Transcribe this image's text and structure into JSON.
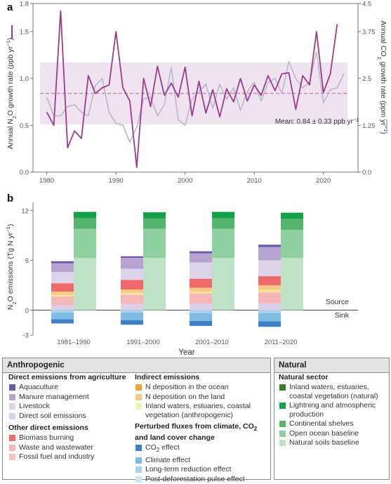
{
  "panels": {
    "a": {
      "label": "a"
    },
    "b": {
      "label": "b"
    }
  },
  "chart_data": [
    {
      "type": "line",
      "panel": "a",
      "xlim": [
        1978,
        2025
      ],
      "x_ticks": [
        "1980",
        "1990",
        "2000",
        "2010",
        "2020"
      ],
      "ylabel_left_pre": "Annual N",
      "ylabel_left_sub": "2",
      "ylabel_left_post": "O growth rate (ppb yr",
      "ylabel_left_sup": "−1",
      "ylabel_left_end": ")",
      "ylim_left": [
        0,
        1.8
      ],
      "y_ticks_left": [
        "0.0",
        "0.5",
        "1.0",
        "1.5",
        "1.8"
      ],
      "ylabel_right_pre": "Annual CO",
      "ylabel_right_sub": "2",
      "ylabel_right_post": " growth rate (ppm yr",
      "ylabel_right_sup": "−1",
      "ylabel_right_end": ")",
      "ylim_right": [
        0,
        4.5
      ],
      "y_ticks_right": [
        "0.0",
        "1.25",
        "2.5",
        "3.75",
        "4.5"
      ],
      "mean_text_pre": "Mean: 0.84 ± 0.33 ppb yr",
      "mean_text_sup": "−1",
      "mean": 0.84,
      "band": [
        0.51,
        1.17
      ],
      "colors": {
        "n2o": "#9c3a8e",
        "co2": "#b8b8cc",
        "band": "#efe3ef",
        "mean_line": "#b8589f"
      },
      "series": [
        {
          "key": "n2o",
          "axis": "left",
          "x": [
            1980,
            1981,
            1982,
            1983,
            1984,
            1985,
            1986,
            1987,
            1988,
            1989,
            1990,
            1991,
            1992,
            1993,
            1994,
            1995,
            1996,
            1997,
            1998,
            1999,
            2000,
            2001,
            2002,
            2003,
            2004,
            2005,
            2006,
            2007,
            2008,
            2009,
            2010,
            2011,
            2012,
            2013,
            2014,
            2015,
            2016,
            2017,
            2018,
            2019,
            2020,
            2021,
            2022
          ],
          "y": [
            0.64,
            0.5,
            1.72,
            0.26,
            0.44,
            0.36,
            1.03,
            0.84,
            0.9,
            0.93,
            1.5,
            0.9,
            0.76,
            0.05,
            1.0,
            0.7,
            1.13,
            0.82,
            0.95,
            0.8,
            1.12,
            0.6,
            0.97,
            0.63,
            0.88,
            0.59,
            0.89,
            0.75,
            1.0,
            0.76,
            0.93,
            0.82,
            1.03,
            0.87,
            1.05,
            1.06,
            0.67,
            1.03,
            0.93,
            1.5,
            0.85,
            1.05,
            1.58
          ]
        },
        {
          "key": "co2",
          "axis": "right",
          "x": [
            1980,
            1981,
            1982,
            1983,
            1984,
            1985,
            1986,
            1987,
            1988,
            1989,
            1990,
            1991,
            1992,
            1993,
            1994,
            1995,
            1996,
            1997,
            1998,
            1999,
            2000,
            2001,
            2002,
            2003,
            2004,
            2005,
            2006,
            2007,
            2008,
            2009,
            2010,
            2011,
            2012,
            2013,
            2014,
            2015,
            2016,
            2017,
            2018,
            2019,
            2020,
            2021,
            2022,
            2023
          ],
          "y": [
            2.0,
            1.5,
            1.5,
            1.75,
            1.8,
            1.6,
            1.5,
            2.3,
            2.5,
            1.6,
            1.3,
            1.25,
            0.8,
            1.2,
            1.95,
            2.0,
            1.5,
            1.8,
            2.8,
            1.4,
            1.25,
            1.95,
            2.15,
            2.35,
            1.7,
            2.35,
            1.95,
            2.25,
            1.65,
            2.15,
            2.4,
            1.9,
            2.4,
            2.5,
            2.1,
            2.95,
            2.5,
            2.25,
            2.4,
            3.2,
            1.85,
            2.2,
            2.25,
            2.65
          ]
        }
      ]
    },
    {
      "type": "bar",
      "panel": "b",
      "stacked": true,
      "ylabel_pre": "N",
      "ylabel_sub": "2",
      "ylabel_post": "O emissions (Tg N yr",
      "ylabel_sup": "−1",
      "ylabel_end": ")",
      "xlabel": "Year",
      "ylim": [
        -3,
        13
      ],
      "y_ticks": [
        "-3",
        "0",
        "6",
        "12"
      ],
      "source_label": "Source",
      "sink_label": "Sink",
      "categories": [
        "1981–1990",
        "1991–2000",
        "2001–2010",
        "2011–2020"
      ],
      "anthropogenic_stacks": [
        {
          "sink": [
            {
              "c": "#a7d3ec",
              "v": -0.3
            },
            {
              "c": "#80bbe2",
              "v": -0.8
            },
            {
              "c": "#3f7fc5",
              "v": -0.5
            }
          ],
          "source": [
            {
              "c": "#dccfe9",
              "v": 0.6
            },
            {
              "c": "#f4b6b6",
              "v": 1.05
            },
            {
              "c": "#f6e49c",
              "v": 0.2
            },
            {
              "c": "#f8c983",
              "v": 0.4
            },
            {
              "c": "#ef6a6a",
              "v": 1.0
            },
            {
              "c": "#ddd3ea",
              "v": 1.35
            },
            {
              "c": "#b7a3d1",
              "v": 1.05
            },
            {
              "c": "#6e59ab",
              "v": 0.25
            }
          ]
        },
        {
          "sink": [
            {
              "c": "#a7d3ec",
              "v": -0.3
            },
            {
              "c": "#80bbe2",
              "v": -0.9
            },
            {
              "c": "#3f7fc5",
              "v": -0.55
            }
          ],
          "source": [
            {
              "c": "#dccfe9",
              "v": 0.75
            },
            {
              "c": "#f4b6b6",
              "v": 1.1
            },
            {
              "c": "#f6e49c",
              "v": 0.25
            },
            {
              "c": "#f8c983",
              "v": 0.4
            },
            {
              "c": "#ef6a6a",
              "v": 1.15
            },
            {
              "c": "#ddd3ea",
              "v": 1.35
            },
            {
              "c": "#b7a3d1",
              "v": 1.3
            },
            {
              "c": "#6e59ab",
              "v": 0.2
            }
          ]
        },
        {
          "sink": [
            {
              "c": "#a7d3ec",
              "v": -0.35
            },
            {
              "c": "#80bbe2",
              "v": -0.95
            },
            {
              "c": "#3f7fc5",
              "v": -0.6
            }
          ],
          "source": [
            {
              "c": "#dccfe9",
              "v": 0.8
            },
            {
              "c": "#f4b6b6",
              "v": 1.2
            },
            {
              "c": "#f6e49c",
              "v": 0.25
            },
            {
              "c": "#f8c983",
              "v": 0.45
            },
            {
              "c": "#ef6a6a",
              "v": 1.1
            },
            {
              "c": "#ddd3ea",
              "v": 1.95
            },
            {
              "c": "#b7a3d1",
              "v": 1.1
            },
            {
              "c": "#6e59ab",
              "v": 0.25
            }
          ]
        },
        {
          "sink": [
            {
              "c": "#a7d3ec",
              "v": -0.35
            },
            {
              "c": "#80bbe2",
              "v": -1.0
            },
            {
              "c": "#3f7fc5",
              "v": -0.65
            }
          ],
          "source": [
            {
              "c": "#dccfe9",
              "v": 0.85
            },
            {
              "c": "#f4b6b6",
              "v": 1.3
            },
            {
              "c": "#f6e49c",
              "v": 0.3
            },
            {
              "c": "#f8c983",
              "v": 0.55
            },
            {
              "c": "#ef6a6a",
              "v": 1.1
            },
            {
              "c": "#ddd3ea",
              "v": 1.9
            },
            {
              "c": "#b7a3d1",
              "v": 1.6
            },
            {
              "c": "#6e59ab",
              "v": 0.3
            }
          ]
        }
      ],
      "natural_stacks": [
        {
          "source": [
            {
              "c": "#bfe2c6",
              "v": 6.3
            },
            {
              "c": "#8fd0a0",
              "v": 3.5
            },
            {
              "c": "#55b56b",
              "v": 1.3
            },
            {
              "c": "#15a04a",
              "v": 0.75
            }
          ]
        },
        {
          "source": [
            {
              "c": "#bfe2c6",
              "v": 6.3
            },
            {
              "c": "#8fd0a0",
              "v": 3.5
            },
            {
              "c": "#55b56b",
              "v": 1.25
            },
            {
              "c": "#15a04a",
              "v": 0.75
            }
          ]
        },
        {
          "source": [
            {
              "c": "#bfe2c6",
              "v": 6.3
            },
            {
              "c": "#8fd0a0",
              "v": 3.5
            },
            {
              "c": "#55b56b",
              "v": 1.3
            },
            {
              "c": "#15a04a",
              "v": 0.75
            }
          ]
        },
        {
          "source": [
            {
              "c": "#bfe2c6",
              "v": 6.3
            },
            {
              "c": "#8fd0a0",
              "v": 3.4
            },
            {
              "c": "#55b56b",
              "v": 1.3
            },
            {
              "c": "#15a04a",
              "v": 0.75
            }
          ]
        }
      ]
    }
  ],
  "legend": {
    "anthropogenic_title": "Anthropogenic",
    "natural_title": "Natural",
    "groups": [
      {
        "title": "Direct emissions from agriculture",
        "items": [
          {
            "label": "Aquaculture",
            "color": "#6e59ab"
          },
          {
            "label": "Manure management",
            "color": "#b7a3d1"
          },
          {
            "label": "Livestock",
            "color": "#ddd3ea"
          },
          {
            "label": "Direct soil emissions",
            "color": "#dccfe9"
          }
        ]
      },
      {
        "title": "Other direct emissions",
        "items": [
          {
            "label": "Biomass burning",
            "color": "#ef6a6a"
          },
          {
            "label": "Waste and wastewater",
            "color": "#f4b6b6"
          },
          {
            "label": "Fossil fuel and industry",
            "color": "#f6c3c3"
          }
        ]
      },
      {
        "title": "Indirect emissions",
        "items": [
          {
            "label": "N deposition in the ocean",
            "color": "#f2a33a"
          },
          {
            "label": "N deposition on the land",
            "color": "#f8c983"
          },
          {
            "label": "Inland waters, estuaries, coastal vegetation (anthropogenic)",
            "color": "#eef3b0"
          }
        ]
      },
      {
        "title_pre": "Perturbed fluxes from climate, CO",
        "title_sub": "2",
        "title_post": " and land cover change",
        "items": [
          {
            "label_pre": "CO",
            "label_sub": "2",
            "label_post": " effect",
            "color": "#3f7fc5"
          },
          {
            "label": "Climate effect",
            "color": "#80bbe2"
          },
          {
            "label": "Long-term reduction effect",
            "color": "#a7d3ec"
          },
          {
            "label": "Post-deforestation pulse effect",
            "color": "#c9e4f4"
          }
        ]
      },
      {
        "title": "Natural sector",
        "items": [
          {
            "label": "Inland waters, estuaries, coastal vegetation (natural)",
            "color": "#3f7a2e"
          },
          {
            "label": "Lightning and atmospheric production",
            "color": "#15a04a"
          },
          {
            "label": "Continental shelves",
            "color": "#55b56b"
          },
          {
            "label": "Open ocean baseline",
            "color": "#8fd0a0"
          },
          {
            "label": "Natural soils baseline",
            "color": "#bfe2c6"
          }
        ]
      }
    ]
  }
}
